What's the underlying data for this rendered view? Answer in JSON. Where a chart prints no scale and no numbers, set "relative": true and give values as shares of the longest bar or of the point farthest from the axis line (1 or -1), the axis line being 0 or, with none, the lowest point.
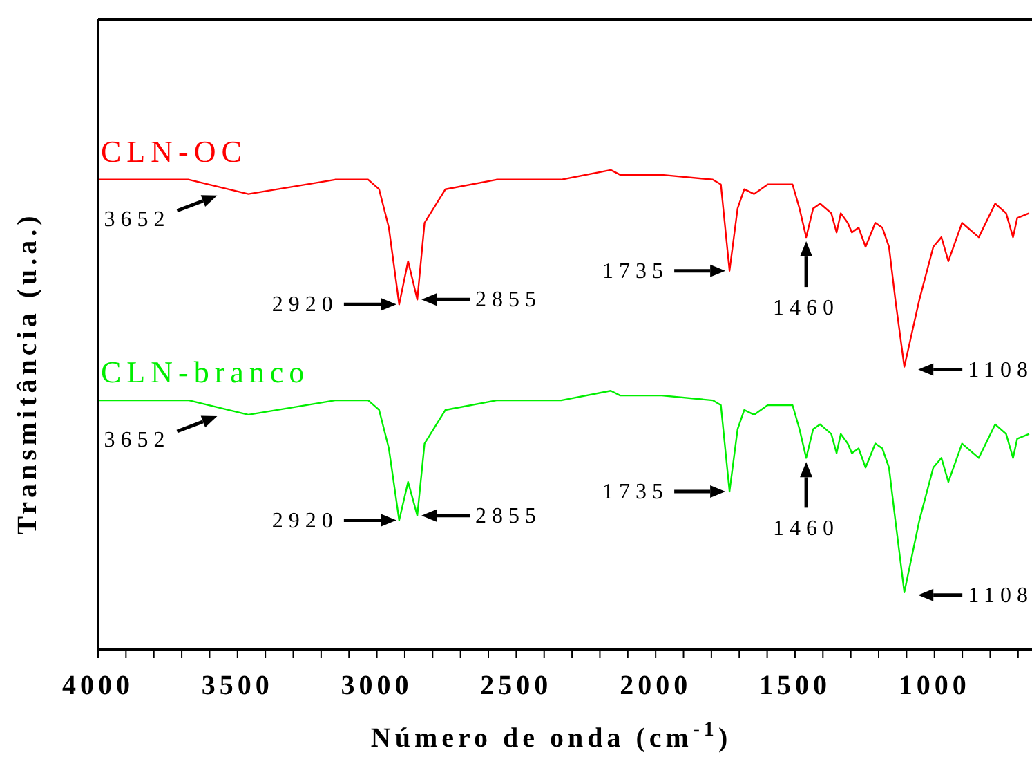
{
  "chart_data": {
    "type": "line",
    "relative": true,
    "xlabel": "Número de onda (cm$^{-1}$)",
    "ylabel": "Transmitância (u.a.)",
    "x": [
      4000,
      3674,
      3461,
      3150,
      3031,
      2992,
      2957,
      2920,
      2888,
      2855,
      2829,
      2754,
      2571,
      2339,
      2161,
      2127,
      2028,
      1978,
      1795,
      1766,
      1735,
      1706,
      1682,
      1647,
      1598,
      1509,
      1484,
      1460,
      1435,
      1410,
      1370,
      1351,
      1336,
      1311,
      1296,
      1272,
      1247,
      1212,
      1187,
      1163,
      1138,
      1108,
      1054,
      1004,
      975,
      950,
      901,
      841,
      782,
      743,
      718,
      703,
      660
    ],
    "series": [
      {
        "name": "CLN-OC",
        "color": "#ff0000",
        "values": [
          0.98,
          0.98,
          0.95,
          0.98,
          0.98,
          0.96,
          0.88,
          0.72,
          0.81,
          0.73,
          0.89,
          0.96,
          0.98,
          0.98,
          1,
          0.99,
          0.99,
          0.99,
          0.98,
          0.97,
          0.79,
          0.92,
          0.96,
          0.95,
          0.97,
          0.97,
          0.92,
          0.86,
          0.92,
          0.93,
          0.91,
          0.87,
          0.91,
          0.89,
          0.87,
          0.88,
          0.84,
          0.89,
          0.88,
          0.84,
          0.72,
          0.59,
          0.73,
          0.84,
          0.86,
          0.81,
          0.89,
          0.86,
          0.93,
          0.91,
          0.86,
          0.9,
          0.91
        ]
      },
      {
        "name": "CLN-branco",
        "color": "#00ee00",
        "values": [
          0.52,
          0.52,
          0.49,
          0.52,
          0.52,
          0.5,
          0.42,
          0.27,
          0.35,
          0.28,
          0.43,
          0.5,
          0.52,
          0.52,
          0.54,
          0.53,
          0.53,
          0.53,
          0.52,
          0.51,
          0.33,
          0.46,
          0.5,
          0.49,
          0.51,
          0.51,
          0.46,
          0.4,
          0.46,
          0.47,
          0.45,
          0.41,
          0.45,
          0.43,
          0.41,
          0.42,
          0.38,
          0.43,
          0.42,
          0.38,
          0.26,
          0.12,
          0.27,
          0.38,
          0.4,
          0.35,
          0.43,
          0.4,
          0.47,
          0.45,
          0.4,
          0.44,
          0.45
        ]
      }
    ],
    "xlim": [
      4000,
      650
    ],
    "xticks": [
      4000,
      {
        "value": 3900,
        "label": null
      },
      {
        "value": 3800,
        "label": null
      },
      {
        "value": 3700,
        "label": null
      },
      {
        "value": 3600,
        "label": null
      },
      3500,
      {
        "value": 3400,
        "label": null
      },
      {
        "value": 3300,
        "label": null
      },
      {
        "value": 3200,
        "label": null
      },
      {
        "value": 3100,
        "label": null
      },
      3000,
      {
        "value": 2900,
        "label": null
      },
      {
        "value": 2800,
        "label": null
      },
      {
        "value": 2700,
        "label": null
      },
      {
        "value": 2600,
        "label": null
      },
      2500,
      {
        "value": 2400,
        "label": null
      },
      {
        "value": 2300,
        "label": null
      },
      {
        "value": 2200,
        "label": null
      },
      {
        "value": 2100,
        "label": null
      },
      2000,
      {
        "value": 1900,
        "label": null
      },
      {
        "value": 1800,
        "label": null
      },
      {
        "value": 1700,
        "label": null
      },
      {
        "value": 1600,
        "label": null
      },
      1500,
      {
        "value": 1400,
        "label": null
      },
      {
        "value": 1300,
        "label": null
      },
      {
        "value": 1200,
        "label": null
      },
      {
        "value": 1100,
        "label": null
      },
      1000,
      {
        "value": 900,
        "label": null
      },
      {
        "value": 800,
        "label": null
      },
      {
        "value": 700,
        "label": null
      }
    ],
    "annotations": [
      {
        "text": "3652",
        "x": 3652,
        "y": 0.97
      },
      {
        "text": "2920",
        "x": 2920,
        "y": 0.72
      },
      {
        "text": "2855",
        "x": 2855,
        "y": 0.73
      },
      {
        "text": "1735",
        "x": 1735,
        "y": 0.79
      },
      {
        "text": "1460",
        "x": 1460,
        "y": 0.86
      },
      {
        "text": "1108",
        "x": 1108,
        "y": 0.59
      },
      {
        "text": "3652",
        "x": 3652,
        "y": 0.51
      },
      {
        "text": "2920",
        "x": 2920,
        "y": 0.27
      },
      {
        "text": "2855",
        "x": 2855,
        "y": 0.28
      },
      {
        "text": "1735",
        "x": 1735,
        "y": 0.33
      },
      {
        "text": "1460",
        "x": 1460,
        "y": 0.4
      },
      {
        "text": "1108",
        "x": 1108,
        "y": 0.12
      }
    ],
    "grid": false,
    "legend": false,
    "marker": "none",
    "line_style": "solid"
  }
}
